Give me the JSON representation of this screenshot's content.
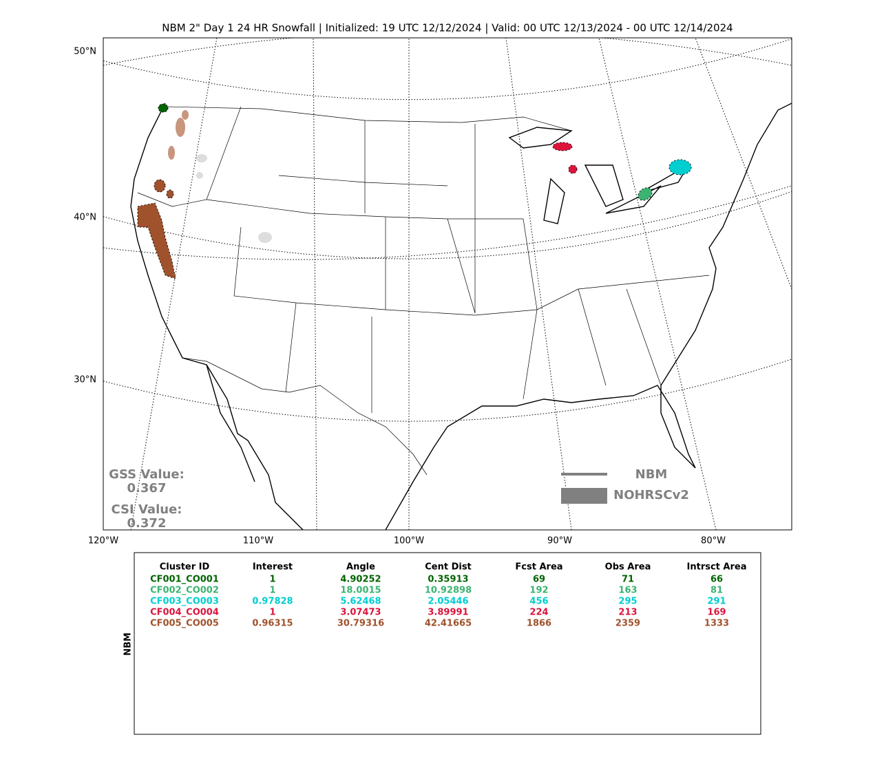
{
  "title": "NBM 2\" Day 1 24 HR Snowfall | Initialized: 19 UTC 12/12/2024 | Valid: 00 UTC 12/13/2024 - 00 UTC 12/14/2024",
  "map": {
    "lat_labels": [
      "50°N",
      "40°N",
      "30°N"
    ],
    "lon_labels": [
      "120°W",
      "110°W",
      "100°W",
      "90°W",
      "80°W"
    ],
    "gss_label": "GSS Value:",
    "gss_value": "0.367",
    "csi_label": "CSI Value:",
    "csi_value": "0.372",
    "legend": [
      "NBM",
      "NOHRSCv2"
    ]
  },
  "table": {
    "side_label": "NBM",
    "headers": [
      "Cluster ID",
      "Interest",
      "Angle",
      "Cent Dist",
      "Fcst Area",
      "Obs Area",
      "Intrsct Area"
    ],
    "rows": [
      {
        "color": "#006400",
        "cells": [
          "CF001_CO001",
          "1",
          "4.90252",
          "0.35913",
          "69",
          "71",
          "66"
        ]
      },
      {
        "color": "#3cb371",
        "cells": [
          "CF002_CO002",
          "1",
          "18.0015",
          "10.92898",
          "192",
          "163",
          "81"
        ]
      },
      {
        "color": "#00ced1",
        "cells": [
          "CF003_CO003",
          "0.97828",
          "5.62468",
          "2.05446",
          "456",
          "295",
          "291"
        ]
      },
      {
        "color": "#dc143c",
        "cells": [
          "CF004_CO004",
          "1",
          "3.07473",
          "3.89991",
          "224",
          "213",
          "169"
        ]
      },
      {
        "color": "#a0522d",
        "cells": [
          "CF005_CO005",
          "0.96315",
          "30.79316",
          "42.41665",
          "1866",
          "2359",
          "1333"
        ]
      }
    ]
  }
}
